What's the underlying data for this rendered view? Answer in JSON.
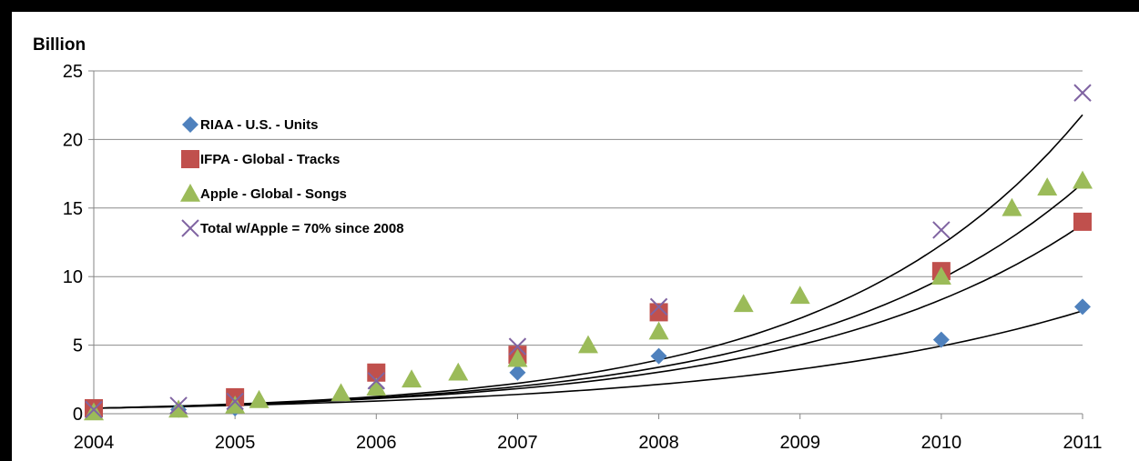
{
  "chart_data": {
    "type": "scatter",
    "title": "",
    "xlabel": "",
    "ylabel": "Billion",
    "xlim": [
      2004,
      2011
    ],
    "ylim": [
      0,
      25
    ],
    "x_ticks": [
      "2004",
      "2005",
      "2006",
      "2007",
      "2008",
      "2009",
      "2010",
      "2011"
    ],
    "y_ticks": [
      "0",
      "5",
      "10",
      "15",
      "20",
      "25"
    ],
    "grid": "horizontal",
    "legend_position": "top-left",
    "series": [
      {
        "name": "RIAA - U.S. - Units",
        "marker": "diamond",
        "color": "#4F81BD",
        "points": [
          [
            2004,
            0.2
          ],
          [
            2004.6,
            0.3
          ],
          [
            2005,
            0.4
          ],
          [
            2006,
            1.9
          ],
          [
            2007,
            3.0
          ],
          [
            2008,
            4.2
          ],
          [
            2010,
            5.4
          ],
          [
            2011,
            7.8
          ]
        ]
      },
      {
        "name": "IFPA - Global - Tracks",
        "marker": "square",
        "color": "#C0504D",
        "points": [
          [
            2004,
            0.4
          ],
          [
            2005,
            1.2
          ],
          [
            2006,
            3.0
          ],
          [
            2007,
            4.3
          ],
          [
            2008,
            7.4
          ],
          [
            2010,
            10.4
          ],
          [
            2011,
            14.0
          ]
        ]
      },
      {
        "name": "Apple - Global - Songs",
        "marker": "triangle",
        "color": "#9BBB59",
        "points": [
          [
            2004,
            0.1
          ],
          [
            2004.6,
            0.3
          ],
          [
            2005,
            0.6
          ],
          [
            2005.17,
            1.0
          ],
          [
            2005.75,
            1.5
          ],
          [
            2006,
            1.9
          ],
          [
            2006.25,
            2.5
          ],
          [
            2006.58,
            3.0
          ],
          [
            2007,
            4.0
          ],
          [
            2007.5,
            5.0
          ],
          [
            2008,
            6.0
          ],
          [
            2008.6,
            8.0
          ],
          [
            2009,
            8.6
          ],
          [
            2010,
            10.0
          ],
          [
            2010.5,
            15.0
          ],
          [
            2010.75,
            16.5
          ],
          [
            2011,
            17.0
          ]
        ]
      },
      {
        "name": "Total w/Apple = 70% since 2008",
        "marker": "x",
        "color": "#8064A2",
        "points": [
          [
            2004,
            0.3
          ],
          [
            2004.6,
            0.6
          ],
          [
            2005,
            0.9
          ],
          [
            2006,
            2.4
          ],
          [
            2007,
            4.9
          ],
          [
            2008,
            7.8
          ],
          [
            2010,
            13.4
          ],
          [
            2011,
            23.4
          ]
        ]
      }
    ],
    "trendlines": [
      {
        "series": "RIAA - U.S. - Units",
        "x_range": [
          2004,
          2011
        ],
        "y_range": [
          0.4,
          7.5
        ]
      },
      {
        "series": "IFPA - Global - Tracks",
        "x_range": [
          2004,
          2011
        ],
        "y_range": [
          0.4,
          13.8
        ]
      },
      {
        "series": "Apple - Global - Songs",
        "x_range": [
          2004,
          2011
        ],
        "y_range": [
          0.4,
          16.8
        ]
      },
      {
        "series": "Total w/Apple = 70% since 2008",
        "x_range": [
          2004,
          2011
        ],
        "y_range": [
          0.4,
          21.8
        ]
      }
    ]
  }
}
